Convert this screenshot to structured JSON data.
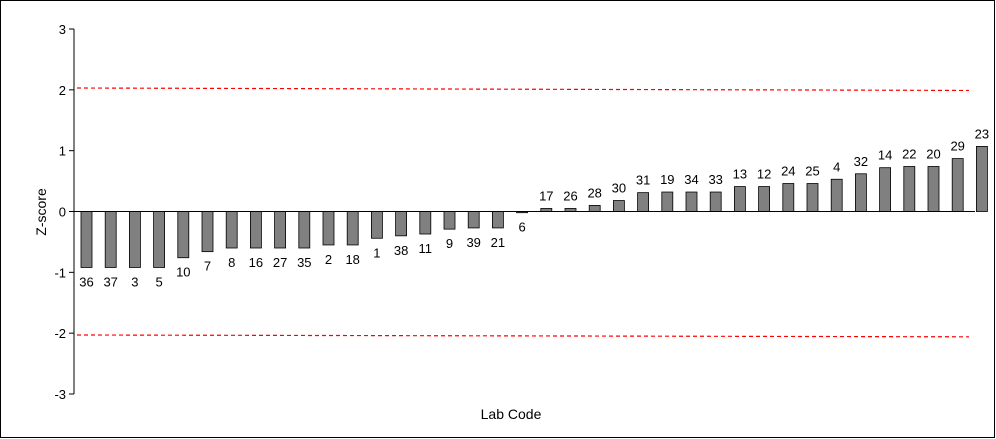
{
  "chart_data": {
    "type": "bar",
    "title": "",
    "xlabel": "Lab Code",
    "ylabel": "Z-score",
    "ylim": [
      -3,
      3
    ],
    "yticks": [
      3,
      2,
      1,
      0,
      -1,
      -2,
      -3
    ],
    "grid": false,
    "legend": "none",
    "categories": [
      "36",
      "37",
      "3",
      "5",
      "10",
      "7",
      "8",
      "16",
      "27",
      "35",
      "2",
      "18",
      "1",
      "38",
      "11",
      "9",
      "39",
      "21",
      "6",
      "17",
      "26",
      "28",
      "30",
      "31",
      "19",
      "34",
      "33",
      "13",
      "12",
      "24",
      "25",
      "4",
      "32",
      "14",
      "22",
      "20",
      "29",
      "23"
    ],
    "values": [
      -0.92,
      -0.92,
      -0.92,
      -0.92,
      -0.76,
      -0.66,
      -0.6,
      -0.6,
      -0.6,
      -0.6,
      -0.55,
      -0.55,
      -0.44,
      -0.4,
      -0.37,
      -0.29,
      -0.27,
      -0.27,
      -0.02,
      0.05,
      0.05,
      0.1,
      0.18,
      0.31,
      0.32,
      0.32,
      0.32,
      0.41,
      0.41,
      0.46,
      0.46,
      0.53,
      0.62,
      0.72,
      0.74,
      0.74,
      0.87,
      1.07
    ],
    "reference_lines": [
      {
        "y_start": 2.03,
        "y_end": 1.99,
        "style": "dashed"
      },
      {
        "y_start": -2.03,
        "y_end": -2.06,
        "style": "dashed"
      }
    ],
    "colors": {
      "bar": "#808080",
      "bar_edge": "#000000",
      "reference_line": "#ff0000",
      "axis": "#000000"
    }
  }
}
